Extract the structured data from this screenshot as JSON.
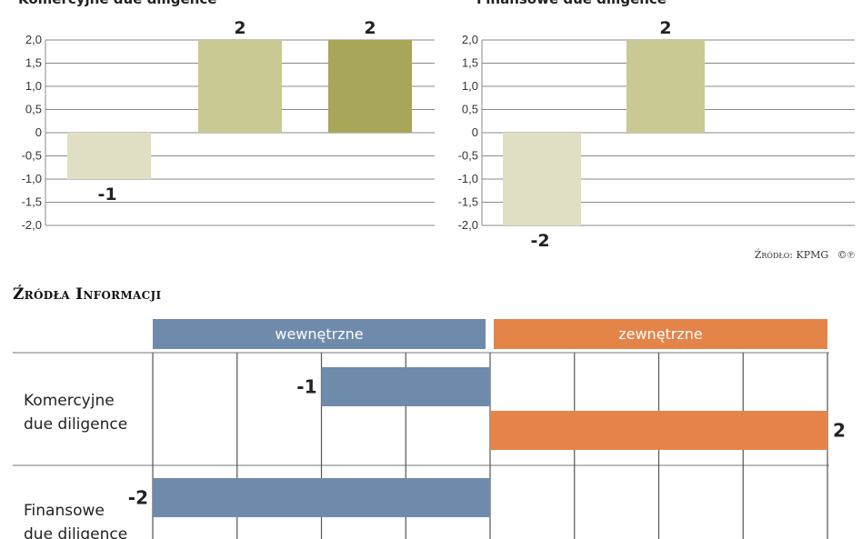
{
  "chart_data": [
    {
      "type": "bar",
      "title": "Komercyjne due diligence",
      "categories": [
        "",
        "",
        ""
      ],
      "values": [
        -1,
        2,
        2
      ],
      "value_labels": [
        "-1",
        "2",
        "2"
      ],
      "colors": [
        "#e0dfc4",
        "#c9c993",
        "#a8a658"
      ],
      "ylim": [
        -2,
        2
      ],
      "yticks": [
        "2,0",
        "1,5",
        "1,0",
        "0,5",
        "0",
        "-0,5",
        "-1,0",
        "-1,5",
        "-2,0"
      ],
      "grid": true
    },
    {
      "type": "bar",
      "title": "Finansowe due diligence",
      "categories": [
        "",
        ""
      ],
      "values": [
        -2,
        2
      ],
      "value_labels": [
        "-2",
        "2"
      ],
      "colors": [
        "#e0dfc4",
        "#c9c993"
      ],
      "ylim": [
        -2,
        2
      ],
      "yticks": [
        "2,0",
        "1,5",
        "1,0",
        "0,5",
        "0",
        "-0,5",
        "-1,0",
        "-1,5",
        "-2,0"
      ],
      "grid": true
    },
    {
      "type": "bar",
      "orientation": "horizontal",
      "title": "Źródła Informacji",
      "column_groups": [
        {
          "label": "wewnętrzne",
          "color": "#6f8bab"
        },
        {
          "label": "zewnętrzne",
          "color": "#e58449"
        }
      ],
      "xlim": [
        -2,
        2
      ],
      "rows": [
        {
          "label_lines": [
            "Komercyjne",
            "due diligence"
          ],
          "bars": [
            {
              "value": -1,
              "label": "-1",
              "color": "#6f8bab"
            },
            {
              "value": 2,
              "label": "2",
              "color": "#e58449"
            }
          ]
        },
        {
          "label_lines": [
            "Finansowe",
            "due diligence"
          ],
          "bars": [
            {
              "value": -2,
              "label": "-2",
              "color": "#6f8bab"
            }
          ]
        }
      ]
    }
  ],
  "source": "Źródło: KPMG",
  "copyright": "©℗"
}
